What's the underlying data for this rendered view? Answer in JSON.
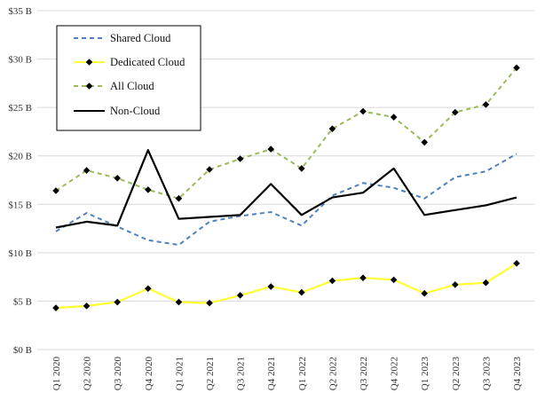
{
  "chart_data": {
    "type": "line",
    "title": "",
    "xlabel": "",
    "ylabel": "",
    "categories": [
      "Q1 2020",
      "Q2 2020",
      "Q3 2020",
      "Q4 2020",
      "Q1 2021",
      "Q2 2021",
      "Q3 2021",
      "Q4 2021",
      "Q1 2022",
      "Q2 2022",
      "Q3 2022",
      "Q4 2022",
      "Q1 2023",
      "Q2 2023",
      "Q3 2023",
      "Q4 2023"
    ],
    "ylim": [
      0,
      35
    ],
    "yticks": [
      0,
      5,
      10,
      15,
      20,
      25,
      30,
      35
    ],
    "ytick_labels": [
      "$0 B",
      "$5 B",
      "$10 B",
      "$15 B",
      "$20 B",
      "$25 B",
      "$30 B",
      "$35 B"
    ],
    "grid": "horizontal",
    "legend_position": "top-left",
    "series": [
      {
        "name": "Shared Cloud",
        "color": "#4f81bd",
        "dash": "dashed",
        "marker": "none",
        "values": [
          12.2,
          14.1,
          12.7,
          11.3,
          10.8,
          13.2,
          13.8,
          14.2,
          12.8,
          15.9,
          17.2,
          16.7,
          15.6,
          17.8,
          18.4,
          20.2
        ]
      },
      {
        "name": "Dedicated Cloud",
        "color": "#ffff33",
        "dash": "solid",
        "marker": "diamond",
        "values": [
          4.3,
          4.5,
          4.9,
          6.3,
          4.9,
          4.8,
          5.6,
          6.5,
          5.9,
          7.1,
          7.4,
          7.2,
          5.8,
          6.7,
          6.9,
          8.9
        ]
      },
      {
        "name": "All Cloud",
        "color": "#9bbb59",
        "dash": "dashed",
        "marker": "diamond",
        "values": [
          16.4,
          18.5,
          17.7,
          16.5,
          15.6,
          18.6,
          19.7,
          20.7,
          18.7,
          22.8,
          24.6,
          24.0,
          21.4,
          24.5,
          25.3,
          29.1
        ]
      },
      {
        "name": "Non-Cloud",
        "color": "#000000",
        "dash": "solid",
        "marker": "none",
        "values": [
          12.6,
          13.2,
          12.8,
          20.6,
          13.5,
          13.7,
          13.9,
          17.1,
          13.9,
          15.7,
          16.2,
          18.7,
          13.9,
          14.4,
          14.9,
          15.7
        ]
      }
    ]
  }
}
